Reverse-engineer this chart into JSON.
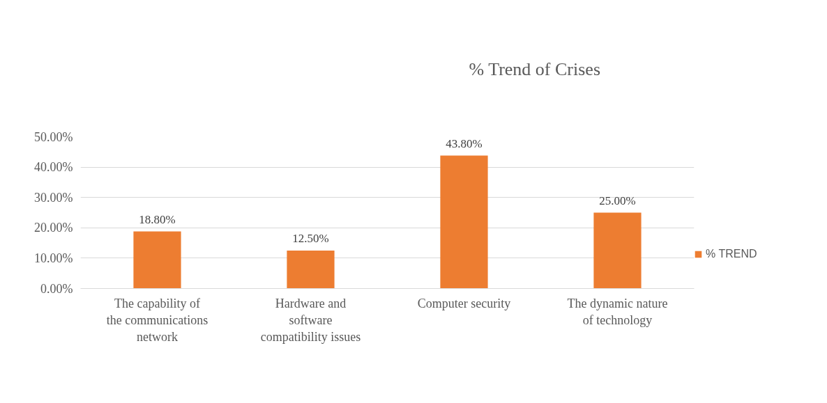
{
  "chart_data": {
    "type": "bar",
    "title": "% Trend of Crises",
    "categories": [
      "The capability of the communications network",
      "Hardware and software compatibility issues",
      "Computer security",
      "The dynamic nature of technology"
    ],
    "series": [
      {
        "name": "% TREND",
        "color": "#ed7d31",
        "values": [
          18.8,
          12.5,
          43.8,
          25.0
        ]
      }
    ],
    "value_labels": [
      "18.80%",
      "12.50%",
      "43.80%",
      "25.00%"
    ],
    "ylim": [
      0,
      50
    ],
    "yticks": [
      {
        "value": 0,
        "label": "0.00%"
      },
      {
        "value": 10,
        "label": "10.00%"
      },
      {
        "value": 20,
        "label": "20.00%"
      },
      {
        "value": 30,
        "label": "30.00%"
      },
      {
        "value": 40,
        "label": "40.00%"
      },
      {
        "value": 50,
        "label": "50.00%"
      }
    ],
    "grid": "y",
    "legend": "right"
  }
}
